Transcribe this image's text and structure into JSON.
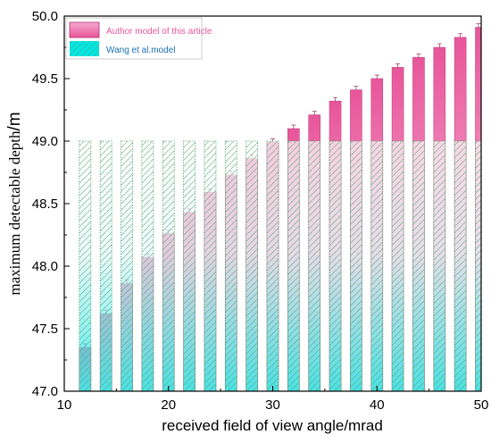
{
  "chart_data": {
    "type": "bar",
    "title": "",
    "xlabel": "received field of view angle/mrad",
    "ylabel_main": "maximum detectable depth",
    "ylabel_unit": "/m",
    "xlim": [
      10,
      50
    ],
    "ylim": [
      47.0,
      50.0
    ],
    "x_ticks": [
      "10",
      "20",
      "30",
      "40",
      "50"
    ],
    "y_ticks": [
      "47.0",
      "47.5",
      "48.0",
      "48.5",
      "49.0",
      "49.5",
      "50.0"
    ],
    "x": [
      12,
      14,
      16,
      18,
      20,
      22,
      24,
      26,
      28,
      30,
      32,
      34,
      36,
      38,
      40,
      42,
      44,
      46,
      48,
      50
    ],
    "series": [
      {
        "name": "Author model of this article",
        "color": "#e8559a",
        "values": [
          47.35,
          47.62,
          47.86,
          48.07,
          48.26,
          48.43,
          48.59,
          48.73,
          48.86,
          48.99,
          49.1,
          49.21,
          49.32,
          49.41,
          49.5,
          49.59,
          49.67,
          49.75,
          49.83,
          49.91
        ]
      },
      {
        "name": "Wang  et al.model",
        "color": "#00e6e6",
        "values": [
          49.0,
          49.0,
          49.0,
          49.0,
          49.0,
          49.0,
          49.0,
          49.0,
          49.0,
          49.0,
          49.0,
          49.0,
          49.0,
          49.0,
          49.0,
          49.0,
          49.0,
          49.0,
          49.0,
          49.0
        ]
      }
    ],
    "legend_position": "top-left",
    "grid": false
  }
}
